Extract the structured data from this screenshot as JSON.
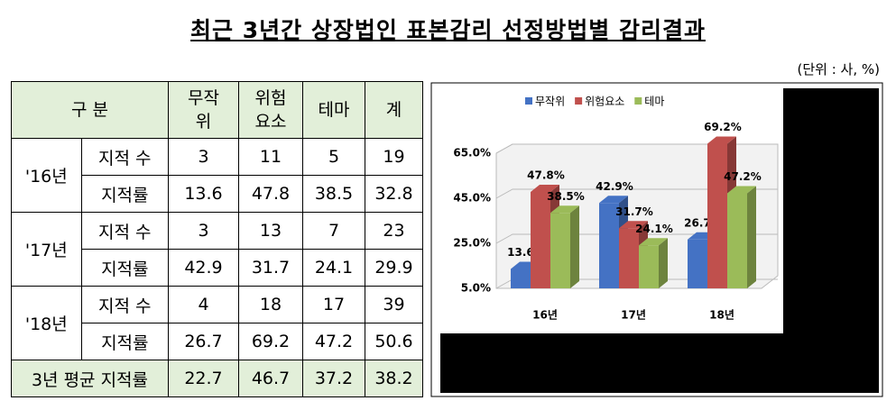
{
  "title": "최근 3년간 상장법인 표본감리 선정방법별 감리결과",
  "unit": "(단위 : 사, %)",
  "table": {
    "header": [
      [
        "구 분"
      ],
      [
        "무작",
        "위"
      ],
      [
        "위험",
        "요소"
      ],
      [
        "테마"
      ],
      [
        "계"
      ]
    ],
    "groups": [
      {
        "year": "'16년",
        "rows": [
          [
            "지적 수",
            3,
            11,
            5,
            19
          ],
          [
            "지적률",
            13.6,
            47.8,
            38.5,
            32.8
          ]
        ]
      },
      {
        "year": "'17년",
        "rows": [
          [
            "지적 수",
            3,
            13,
            7,
            23
          ],
          [
            "지적률",
            42.9,
            31.7,
            24.1,
            29.9
          ]
        ]
      },
      {
        "year": "'18년",
        "rows": [
          [
            "지적 수",
            4,
            18,
            17,
            39
          ],
          [
            "지적률",
            26.7,
            69.2,
            47.2,
            50.6
          ]
        ]
      }
    ],
    "footer": [
      "3년 평균 지적률",
      22.7,
      46.7,
      37.2,
      38.2
    ]
  },
  "chart_data": {
    "type": "bar3d",
    "categories": [
      "16년",
      "17년",
      "18년"
    ],
    "series": [
      {
        "name": "무작위",
        "color": "#4472c4",
        "values": [
          13.6,
          42.9,
          26.7
        ],
        "value_labels": [
          "13.6%",
          "42.9%",
          "26.7%"
        ]
      },
      {
        "name": "위험요소",
        "color": "#c0504d",
        "values": [
          47.8,
          31.7,
          69.2
        ],
        "value_labels": [
          "47.8%",
          "31.7%",
          "69.2%"
        ]
      },
      {
        "name": "테마",
        "color": "#9bbb59",
        "values": [
          38.5,
          24.1,
          47.2
        ],
        "value_labels": [
          "38.5%",
          "24.1%",
          "47.2%"
        ]
      }
    ],
    "ylim": [
      5,
      65
    ],
    "yticks": [
      {
        "value": 5,
        "label": "5.0%"
      },
      {
        "value": 25,
        "label": "25.0%"
      },
      {
        "value": 45,
        "label": "45.0%"
      },
      {
        "value": 65,
        "label": "65.0%"
      }
    ],
    "grid": true,
    "legend": "top"
  }
}
